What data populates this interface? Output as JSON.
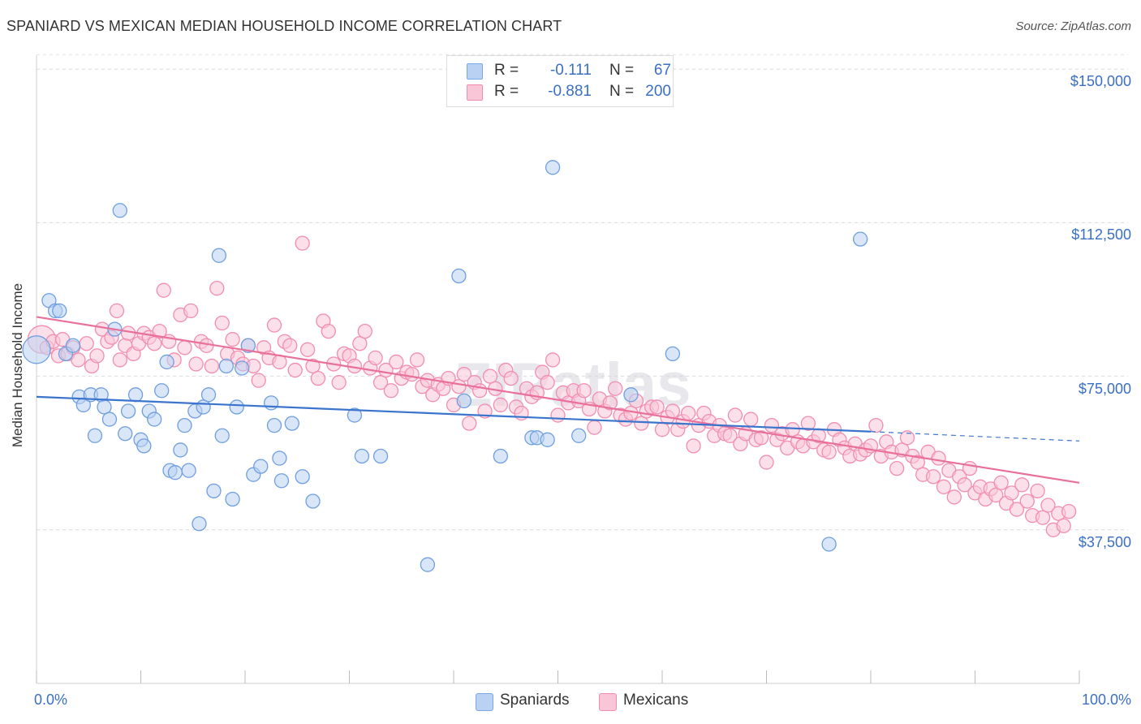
{
  "title": "SPANIARD VS MEXICAN MEDIAN HOUSEHOLD INCOME CORRELATION CHART",
  "source": "Source: ZipAtlas.com",
  "watermark": "ZIPatlas",
  "legend": {
    "rows": [
      {
        "r_label": "R =",
        "r_value": "-0.111",
        "n_label": "N =",
        "n_value": "67"
      },
      {
        "r_label": "R =",
        "r_value": "-0.881",
        "n_label": "N =",
        "n_value": "200"
      }
    ]
  },
  "bottom_legend": [
    "Spaniards",
    "Mexicans"
  ],
  "chart_data": {
    "type": "scatter",
    "title": "SPANIARD VS MEXICAN MEDIAN HOUSEHOLD INCOME CORRELATION CHART",
    "xlabel": "",
    "ylabel": "Median Household Income",
    "xlim": [
      0,
      100
    ],
    "ylim": [
      0,
      155000
    ],
    "x_tick_labels": [
      "0.0%",
      "100.0%"
    ],
    "y_ticks": [
      37500,
      75000,
      112500,
      150000
    ],
    "y_tick_labels": [
      "$37,500",
      "$75,000",
      "$112,500",
      "$150,000"
    ],
    "grid": "horizontal dashed",
    "legend_position": "top-center",
    "colors": {
      "Spaniards": "#7aa8e6",
      "Mexicans": "#f28db0",
      "spaniards_trend": "#3a74cc",
      "mexicans_trend": "#e8709a"
    },
    "series": [
      {
        "name": "Spaniards",
        "r": -0.111,
        "n": 67,
        "trend": {
          "x": [
            0,
            80
          ],
          "y": [
            70000,
            61500
          ]
        },
        "trend_dashed": {
          "x": [
            80,
            100
          ],
          "y": [
            61500,
            59200
          ]
        },
        "points": [
          [
            0.0,
            81500
          ],
          [
            1.2,
            93500
          ],
          [
            1.8,
            91000
          ],
          [
            2.2,
            91000
          ],
          [
            2.8,
            80500
          ],
          [
            3.5,
            82500
          ],
          [
            4.1,
            70000
          ],
          [
            4.5,
            68000
          ],
          [
            5.2,
            70500
          ],
          [
            5.6,
            60500
          ],
          [
            6.2,
            70500
          ],
          [
            6.5,
            67500
          ],
          [
            7.0,
            64500
          ],
          [
            7.5,
            86500
          ],
          [
            8.0,
            115500
          ],
          [
            8.5,
            61000
          ],
          [
            8.8,
            66500
          ],
          [
            9.5,
            70500
          ],
          [
            10.0,
            59500
          ],
          [
            10.3,
            58000
          ],
          [
            10.8,
            66500
          ],
          [
            11.3,
            64500
          ],
          [
            12.0,
            71500
          ],
          [
            12.5,
            78500
          ],
          [
            12.8,
            52000
          ],
          [
            13.3,
            51500
          ],
          [
            13.8,
            57000
          ],
          [
            14.2,
            63000
          ],
          [
            14.6,
            52000
          ],
          [
            15.2,
            66500
          ],
          [
            15.6,
            39000
          ],
          [
            16.0,
            67500
          ],
          [
            16.5,
            70500
          ],
          [
            17.0,
            47000
          ],
          [
            17.5,
            104500
          ],
          [
            17.8,
            60500
          ],
          [
            18.2,
            77500
          ],
          [
            18.8,
            45000
          ],
          [
            19.2,
            67500
          ],
          [
            19.7,
            77000
          ],
          [
            20.3,
            82500
          ],
          [
            20.8,
            51000
          ],
          [
            21.5,
            53000
          ],
          [
            22.5,
            68500
          ],
          [
            22.8,
            63000
          ],
          [
            23.3,
            55000
          ],
          [
            23.5,
            49500
          ],
          [
            24.5,
            63500
          ],
          [
            25.5,
            50500
          ],
          [
            26.5,
            44500
          ],
          [
            30.5,
            65500
          ],
          [
            31.2,
            55500
          ],
          [
            33.0,
            55500
          ],
          [
            37.5,
            29000
          ],
          [
            40.5,
            99500
          ],
          [
            41.0,
            69000
          ],
          [
            44.5,
            55500
          ],
          [
            47.5,
            60000
          ],
          [
            48.0,
            60000
          ],
          [
            49.0,
            59500
          ],
          [
            49.5,
            126000
          ],
          [
            52.0,
            60500
          ],
          [
            57.0,
            70500
          ],
          [
            61.0,
            80500
          ],
          [
            76.0,
            34000
          ],
          [
            79.0,
            108500
          ]
        ]
      },
      {
        "name": "Mexicans",
        "r": -0.881,
        "n": 200,
        "trend": {
          "x": [
            0,
            100
          ],
          "y": [
            89500,
            49000
          ]
        },
        "points": [
          [
            0.5,
            84000
          ],
          [
            1.0,
            82000
          ],
          [
            1.6,
            83500
          ],
          [
            2.1,
            80000
          ],
          [
            2.5,
            84000
          ],
          [
            3.0,
            80500
          ],
          [
            3.5,
            82000
          ],
          [
            4.0,
            79000
          ],
          [
            4.8,
            83000
          ],
          [
            5.3,
            77500
          ],
          [
            5.8,
            80000
          ],
          [
            6.3,
            86500
          ],
          [
            6.8,
            83500
          ],
          [
            7.2,
            84500
          ],
          [
            7.7,
            91000
          ],
          [
            8.0,
            79000
          ],
          [
            8.5,
            82500
          ],
          [
            8.8,
            85500
          ],
          [
            9.3,
            80500
          ],
          [
            9.8,
            83000
          ],
          [
            10.3,
            85500
          ],
          [
            10.8,
            84500
          ],
          [
            11.3,
            83000
          ],
          [
            11.8,
            86000
          ],
          [
            12.2,
            96000
          ],
          [
            12.7,
            83500
          ],
          [
            13.2,
            79000
          ],
          [
            13.8,
            90000
          ],
          [
            14.2,
            82000
          ],
          [
            14.8,
            91000
          ],
          [
            15.3,
            78000
          ],
          [
            15.8,
            83500
          ],
          [
            16.3,
            82500
          ],
          [
            16.8,
            77500
          ],
          [
            17.3,
            96500
          ],
          [
            17.8,
            88000
          ],
          [
            18.3,
            80500
          ],
          [
            18.8,
            84000
          ],
          [
            19.3,
            79500
          ],
          [
            19.8,
            78000
          ],
          [
            20.3,
            82500
          ],
          [
            20.8,
            77500
          ],
          [
            21.3,
            74000
          ],
          [
            21.8,
            82000
          ],
          [
            22.3,
            79500
          ],
          [
            22.8,
            87500
          ],
          [
            23.3,
            78500
          ],
          [
            23.8,
            83500
          ],
          [
            24.3,
            82500
          ],
          [
            24.8,
            76500
          ],
          [
            25.5,
            107500
          ],
          [
            26.0,
            81500
          ],
          [
            26.5,
            77500
          ],
          [
            27.0,
            74500
          ],
          [
            27.5,
            88500
          ],
          [
            28.0,
            86000
          ],
          [
            28.5,
            78000
          ],
          [
            29.0,
            73500
          ],
          [
            29.5,
            80500
          ],
          [
            30.0,
            80000
          ],
          [
            30.5,
            77500
          ],
          [
            31.0,
            83000
          ],
          [
            31.5,
            86000
          ],
          [
            32.0,
            77000
          ],
          [
            32.5,
            79500
          ],
          [
            33.0,
            73500
          ],
          [
            33.5,
            76500
          ],
          [
            34.0,
            71500
          ],
          [
            34.5,
            78500
          ],
          [
            35.0,
            74500
          ],
          [
            35.5,
            76000
          ],
          [
            36.0,
            75500
          ],
          [
            36.5,
            79000
          ],
          [
            37.0,
            72500
          ],
          [
            37.5,
            74000
          ],
          [
            38.0,
            70500
          ],
          [
            38.5,
            73000
          ],
          [
            39.0,
            72000
          ],
          [
            39.5,
            74500
          ],
          [
            40.0,
            68000
          ],
          [
            40.5,
            72500
          ],
          [
            41.0,
            75500
          ],
          [
            41.5,
            63500
          ],
          [
            42.0,
            73500
          ],
          [
            42.5,
            71500
          ],
          [
            43.0,
            66500
          ],
          [
            43.5,
            75000
          ],
          [
            44.0,
            72000
          ],
          [
            44.5,
            68000
          ],
          [
            45.0,
            76500
          ],
          [
            45.5,
            74500
          ],
          [
            46.0,
            67500
          ],
          [
            46.5,
            66000
          ],
          [
            47.0,
            72000
          ],
          [
            47.5,
            70000
          ],
          [
            48.0,
            71000
          ],
          [
            48.5,
            76000
          ],
          [
            49.0,
            73500
          ],
          [
            49.5,
            79000
          ],
          [
            50.0,
            65500
          ],
          [
            50.5,
            71000
          ],
          [
            51.0,
            68500
          ],
          [
            51.5,
            71500
          ],
          [
            52.0,
            69000
          ],
          [
            52.5,
            71500
          ],
          [
            53.0,
            67000
          ],
          [
            53.5,
            62500
          ],
          [
            54.0,
            69500
          ],
          [
            54.5,
            66500
          ],
          [
            55.0,
            68500
          ],
          [
            55.5,
            72000
          ],
          [
            56.0,
            65500
          ],
          [
            56.5,
            64500
          ],
          [
            57.0,
            66000
          ],
          [
            57.5,
            69000
          ],
          [
            58.0,
            63500
          ],
          [
            58.5,
            66500
          ],
          [
            59.0,
            67500
          ],
          [
            59.5,
            67500
          ],
          [
            60.0,
            62000
          ],
          [
            60.5,
            65000
          ],
          [
            61.0,
            66500
          ],
          [
            61.5,
            62000
          ],
          [
            62.0,
            64000
          ],
          [
            62.5,
            66000
          ],
          [
            63.0,
            58000
          ],
          [
            63.5,
            63000
          ],
          [
            64.0,
            66000
          ],
          [
            64.5,
            64000
          ],
          [
            65.0,
            60500
          ],
          [
            65.5,
            63000
          ],
          [
            66.0,
            61000
          ],
          [
            66.5,
            60500
          ],
          [
            67.0,
            65500
          ],
          [
            67.5,
            58500
          ],
          [
            68.0,
            61000
          ],
          [
            68.5,
            64500
          ],
          [
            69.0,
            59500
          ],
          [
            69.5,
            60000
          ],
          [
            70.0,
            54000
          ],
          [
            70.5,
            63000
          ],
          [
            71.0,
            59500
          ],
          [
            71.5,
            61000
          ],
          [
            72.0,
            57500
          ],
          [
            72.5,
            62000
          ],
          [
            73.0,
            59000
          ],
          [
            73.5,
            58000
          ],
          [
            74.0,
            63500
          ],
          [
            74.5,
            59000
          ],
          [
            75.0,
            60500
          ],
          [
            75.5,
            57000
          ],
          [
            76.0,
            56500
          ],
          [
            76.5,
            62000
          ],
          [
            77.0,
            59500
          ],
          [
            77.5,
            57500
          ],
          [
            78.0,
            55500
          ],
          [
            78.5,
            58500
          ],
          [
            79.0,
            56000
          ],
          [
            79.5,
            57000
          ],
          [
            80.0,
            58000
          ],
          [
            80.5,
            63000
          ],
          [
            81.0,
            55500
          ],
          [
            81.5,
            59000
          ],
          [
            82.0,
            56500
          ],
          [
            82.5,
            52500
          ],
          [
            83.0,
            57000
          ],
          [
            83.5,
            60000
          ],
          [
            84.0,
            55500
          ],
          [
            84.5,
            54000
          ],
          [
            85.0,
            51000
          ],
          [
            85.5,
            56500
          ],
          [
            86.0,
            50500
          ],
          [
            86.5,
            55000
          ],
          [
            87.0,
            48000
          ],
          [
            87.5,
            52000
          ],
          [
            88.0,
            45500
          ],
          [
            88.5,
            50500
          ],
          [
            89.0,
            48500
          ],
          [
            89.5,
            52500
          ],
          [
            90.0,
            46500
          ],
          [
            90.5,
            48000
          ],
          [
            91.0,
            45000
          ],
          [
            91.5,
            47500
          ],
          [
            92.0,
            46000
          ],
          [
            92.5,
            49000
          ],
          [
            93.0,
            44000
          ],
          [
            93.5,
            46500
          ],
          [
            94.0,
            42500
          ],
          [
            94.5,
            48500
          ],
          [
            95.0,
            44500
          ],
          [
            95.5,
            41000
          ],
          [
            96.0,
            47000
          ],
          [
            96.5,
            40500
          ],
          [
            97.0,
            43500
          ],
          [
            97.5,
            37500
          ],
          [
            98.0,
            41500
          ],
          [
            98.5,
            38500
          ],
          [
            99.0,
            42000
          ]
        ]
      }
    ]
  }
}
